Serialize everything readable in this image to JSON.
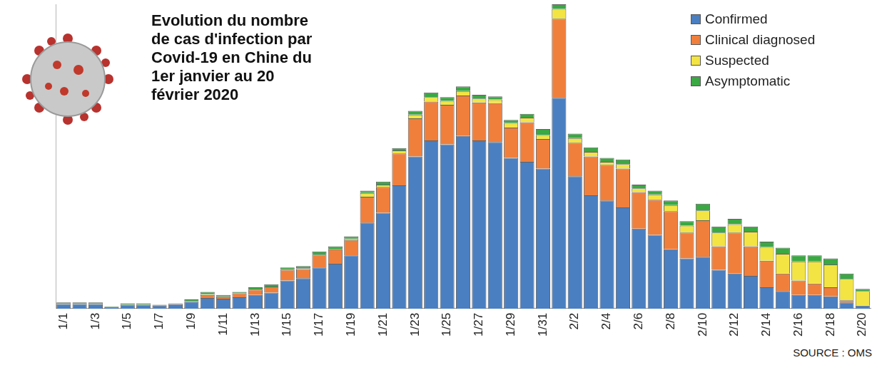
{
  "chart_data": {
    "type": "bar",
    "title": "Evolution du nombre de cas d'infection par Covid-19 en Chine du 1er janvier au 20 février 2020",
    "source": "SOURCE : OMS",
    "stacked": true,
    "grid": false,
    "legend": "top-right",
    "tick_labels": "x",
    "ylim": [
      0,
      4000
    ],
    "categories": [
      "1/1",
      null,
      "1/3",
      null,
      "1/5",
      null,
      "1/7",
      null,
      "1/9",
      null,
      "1/11",
      null,
      "1/13",
      null,
      "1/15",
      null,
      "1/17",
      null,
      "1/19",
      null,
      "1/21",
      null,
      "1/23",
      null,
      "1/25",
      null,
      "1/27",
      null,
      "1/29",
      null,
      "1/31",
      null,
      "2/2",
      null,
      "2/4",
      null,
      "2/6",
      null,
      "2/8",
      null,
      "2/10",
      null,
      "2/12",
      null,
      "2/14",
      null,
      "2/16",
      null,
      "2/18",
      null,
      "2/20"
    ],
    "series": [
      {
        "name": "Confirmed",
        "color": "#4a7fc1",
        "values": [
          60,
          60,
          60,
          20,
          50,
          50,
          40,
          60,
          90,
          140,
          130,
          150,
          180,
          210,
          370,
          400,
          540,
          590,
          700,
          1130,
          1260,
          1620,
          2000,
          2210,
          2160,
          2270,
          2210,
          2190,
          1980,
          1930,
          1840,
          2770,
          1740,
          1490,
          1420,
          1330,
          1050,
          970,
          780,
          660,
          680,
          510,
          460,
          430,
          280,
          230,
          180,
          180,
          160,
          80,
          40
        ]
      },
      {
        "name": "Clinical diagnosed",
        "color": "#f07f3c",
        "values": [
          0,
          0,
          0,
          0,
          0,
          0,
          0,
          10,
          10,
          40,
          30,
          50,
          70,
          80,
          140,
          120,
          170,
          190,
          200,
          340,
          340,
          420,
          500,
          510,
          520,
          530,
          500,
          510,
          400,
          520,
          390,
          1040,
          440,
          510,
          470,
          510,
          480,
          460,
          500,
          340,
          480,
          310,
          540,
          390,
          350,
          230,
          190,
          150,
          120,
          30,
          0
        ]
      },
      {
        "name": "Suspected",
        "color": "#f3e443",
        "values": [
          0,
          0,
          0,
          0,
          0,
          0,
          0,
          0,
          0,
          10,
          0,
          0,
          0,
          0,
          0,
          10,
          0,
          0,
          20,
          50,
          30,
          40,
          50,
          60,
          50,
          60,
          50,
          50,
          60,
          60,
          50,
          130,
          60,
          60,
          40,
          60,
          50,
          70,
          80,
          90,
          130,
          180,
          110,
          190,
          180,
          260,
          250,
          290,
          300,
          280,
          190
        ]
      },
      {
        "name": "Asymptomatic",
        "color": "#3aa843",
        "values": [
          20,
          20,
          20,
          10,
          20,
          20,
          10,
          0,
          20,
          30,
          20,
          20,
          30,
          30,
          30,
          30,
          40,
          40,
          30,
          30,
          40,
          30,
          50,
          60,
          50,
          60,
          50,
          40,
          40,
          50,
          80,
          60,
          60,
          60,
          50,
          60,
          50,
          50,
          60,
          60,
          90,
          80,
          70,
          70,
          70,
          80,
          80,
          80,
          80,
          70,
          30
        ]
      }
    ]
  }
}
